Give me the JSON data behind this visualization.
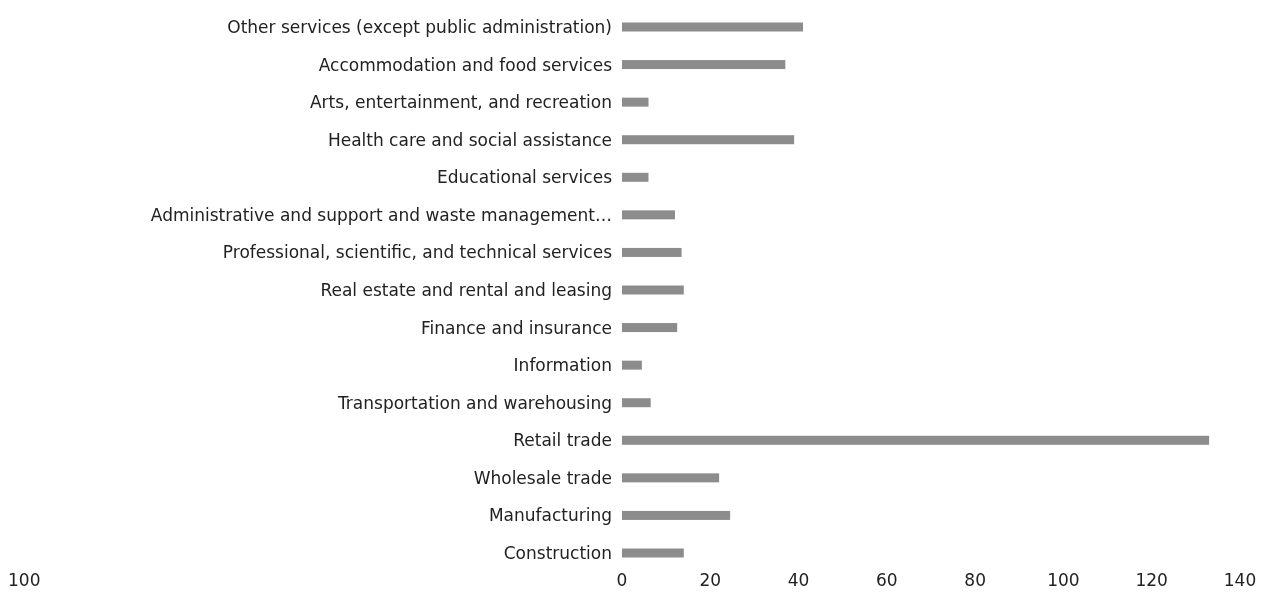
{
  "chart_data": {
    "type": "bar",
    "orientation": "horizontal",
    "categories": [
      "Other services (except public administration)",
      "Accommodation and food services",
      "Arts, entertainment, and recreation",
      "Health care and social assistance",
      "Educational services",
      "Administrative and support and waste management…",
      "Professional, scientific, and technical services",
      "Real estate and rental and leasing",
      "Finance and insurance",
      "Information",
      "Transportation and warehousing",
      "Retail trade",
      "Wholesale trade",
      "Manufacturing",
      "Construction"
    ],
    "values": [
      41,
      37,
      6,
      39,
      6,
      12,
      13.5,
      14,
      12.5,
      4.5,
      6.5,
      133,
      22,
      24.5,
      14
    ],
    "color": "#8c8c8c",
    "xlim": [
      0,
      140
    ],
    "xticks": [
      0,
      20,
      40,
      60,
      80,
      100,
      120,
      140
    ],
    "annotations": [
      "100"
    ]
  }
}
